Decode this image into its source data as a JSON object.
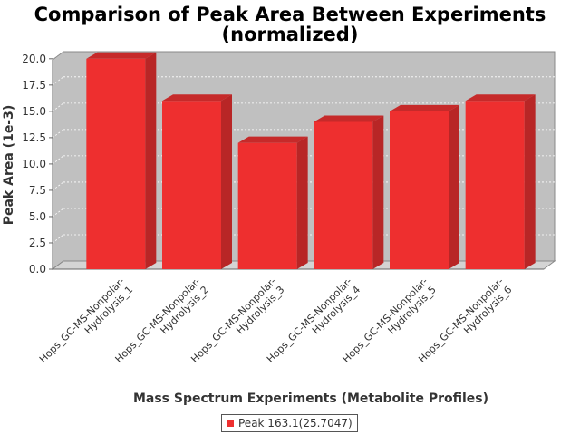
{
  "chart_data": {
    "type": "bar",
    "title_lines": [
      "Comparison of Peak Area Between Experiments",
      "(normalized)"
    ],
    "xlabel": "Mass Spectrum Experiments (Metabolite Profiles)",
    "ylabel": "Peak Area (1e-3)",
    "ylim": [
      0,
      20.5
    ],
    "yticks": [
      "0.0",
      "2.5",
      "5.0",
      "7.5",
      "10.0",
      "12.5",
      "15.0",
      "17.5",
      "20.0"
    ],
    "categories": [
      [
        "Hops_GC-MS-Nonpolar-",
        "Hydrolysis_1"
      ],
      [
        "Hops_GC-MS-Nonpolar-",
        "Hydrolysis_2"
      ],
      [
        "Hops_GC-MS-Nonpolar-",
        "Hydrolysis_3"
      ],
      [
        "Hops_GC-MS-Nonpolar-",
        "Hydrolysis_4"
      ],
      [
        "Hops_GC-MS-Nonpolar-",
        "Hydrolysis_5"
      ],
      [
        "Hops_GC-MS-Nonpolar-",
        "Hydrolysis_6"
      ]
    ],
    "series": [
      {
        "name": "Peak 163.1(25.7047)",
        "values": [
          20.0,
          16.0,
          12.0,
          14.0,
          15.0,
          16.0
        ],
        "color": "#ee2f2f"
      }
    ],
    "grid": true,
    "legend_position": "bottom",
    "style": "3d"
  }
}
